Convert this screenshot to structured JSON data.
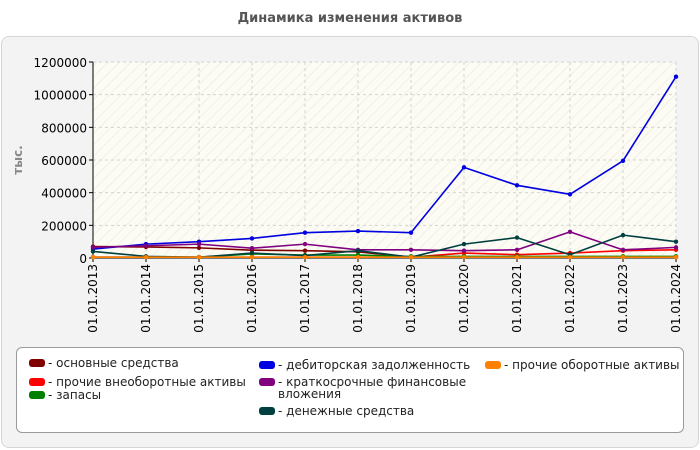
{
  "page": {
    "title": "Динамика изменения активов"
  },
  "chart_data": {
    "type": "line",
    "ylabel": "тыс.",
    "ylim": [
      0,
      1200000
    ],
    "yticks": [
      0,
      200000,
      400000,
      600000,
      800000,
      1000000,
      1200000
    ],
    "grid": true,
    "legend_position": "bottom",
    "categories": [
      "01.01.2013",
      "01.01.2014",
      "01.01.2015",
      "01.01.2016",
      "01.01.2017",
      "01.01.2018",
      "01.01.2019",
      "01.01.2020",
      "01.01.2021",
      "01.01.2022",
      "01.01.2023",
      "01.01.2024"
    ],
    "series": [
      {
        "name": "- основные средства",
        "color": "#800000",
        "values": [
          70000,
          68000,
          62000,
          48000,
          45000,
          38000,
          5000,
          5000,
          5000,
          5000,
          5000,
          5000
        ]
      },
      {
        "name": "- прочие внеоборотные активы",
        "color": "#ff0000",
        "values": [
          5000,
          5000,
          5000,
          5000,
          5000,
          5000,
          5000,
          30000,
          20000,
          30000,
          45000,
          50000
        ]
      },
      {
        "name": "- запасы",
        "color": "#008000",
        "values": [
          5000,
          5000,
          5000,
          25000,
          18000,
          18000,
          10000,
          10000,
          10000,
          10000,
          10000,
          10000
        ]
      },
      {
        "name": "- дебиторская задолженность",
        "color": "#0000e0",
        "values": [
          55000,
          85000,
          100000,
          120000,
          155000,
          165000,
          155000,
          555000,
          445000,
          390000,
          595000,
          1110000
        ]
      },
      {
        "name": "- краткосрочные финансовые вложения",
        "color": "#800080",
        "values": [
          65000,
          75000,
          85000,
          60000,
          85000,
          50000,
          50000,
          45000,
          50000,
          160000,
          50000,
          65000
        ]
      },
      {
        "name": "- денежные средства",
        "color": "#004040",
        "values": [
          40000,
          10000,
          5000,
          30000,
          15000,
          45000,
          5000,
          85000,
          125000,
          20000,
          140000,
          100000
        ]
      },
      {
        "name": "- прочие оборотные активы",
        "color": "#ff8000",
        "values": [
          5000,
          5000,
          5000,
          5000,
          5000,
          5000,
          5000,
          5000,
          5000,
          5000,
          5000,
          5000
        ]
      }
    ]
  },
  "legend": {
    "items": [
      {
        "label": "- основные средства",
        "color": "#800000"
      },
      {
        "label": "- прочие внеоборотные активы",
        "color": "#ff0000"
      },
      {
        "label": "- запасы",
        "color": "#008000"
      },
      {
        "label": "- дебиторская задолженность",
        "color": "#0000e0"
      },
      {
        "label": "- краткосрочные финансовые вложения",
        "color": "#800080"
      },
      {
        "label": "- денежные средства",
        "color": "#004040"
      },
      {
        "label": "- прочие оборотные активы",
        "color": "#ff8000"
      }
    ]
  }
}
